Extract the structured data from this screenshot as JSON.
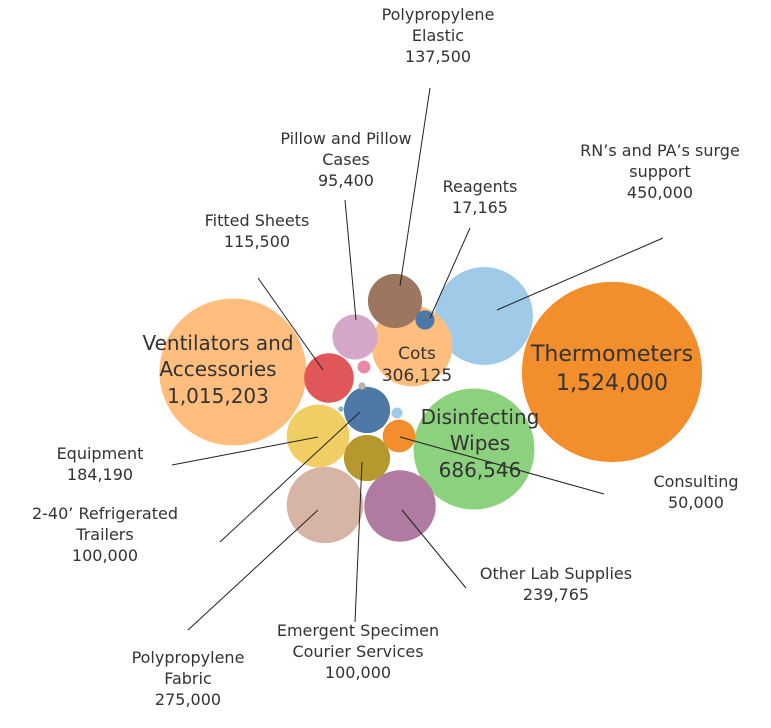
{
  "chart_data": {
    "type": "packed-bubble",
    "categories": [
      "Thermometers",
      "Ventilators and Accessories",
      "Disinfecting Wipes",
      "RN’s and PA’s surge support",
      "Cots",
      "Polypropylene Fabric",
      "Other Lab Supplies",
      "Equipment",
      "Polypropylene Elastic",
      "Fitted Sheets",
      "Emergent Specimen Courier Services",
      "2-40’ Refrigerated Trailers",
      "Pillow and Pillow Cases",
      "Consulting",
      "Reagents",
      null,
      null,
      null,
      null
    ],
    "values": [
      1524000,
      1015203,
      686546,
      450000,
      306125,
      275000,
      239765,
      184190,
      137500,
      115500,
      100000,
      100000,
      95400,
      50000,
      17165,
      7800,
      2500,
      5700,
      1400
    ],
    "value_labels": [
      "1,524,000",
      "1,015,203",
      "686,546",
      "450,000",
      "306,125",
      "275,000",
      "239,765",
      "184,190",
      "137,500",
      "115,500",
      "100,000",
      "100,000",
      "95,400",
      "50,000",
      "17,165",
      null,
      null,
      null,
      null
    ],
    "colors": [
      "#f28e2b",
      "#ffbe7d",
      "#8cd17d",
      "#a0cbe8",
      "#ffbe7d",
      "#d7b5a6",
      "#b07aa1",
      "#f1ce63",
      "#9d7660",
      "#e15759",
      "#b6992d",
      "#4e79a7",
      "#d4a6c8",
      "#f28e2b",
      "#4e79a7",
      "#e889a8",
      "#bab0ac",
      "#a0cbe8",
      "#86bcb6"
    ]
  }
}
